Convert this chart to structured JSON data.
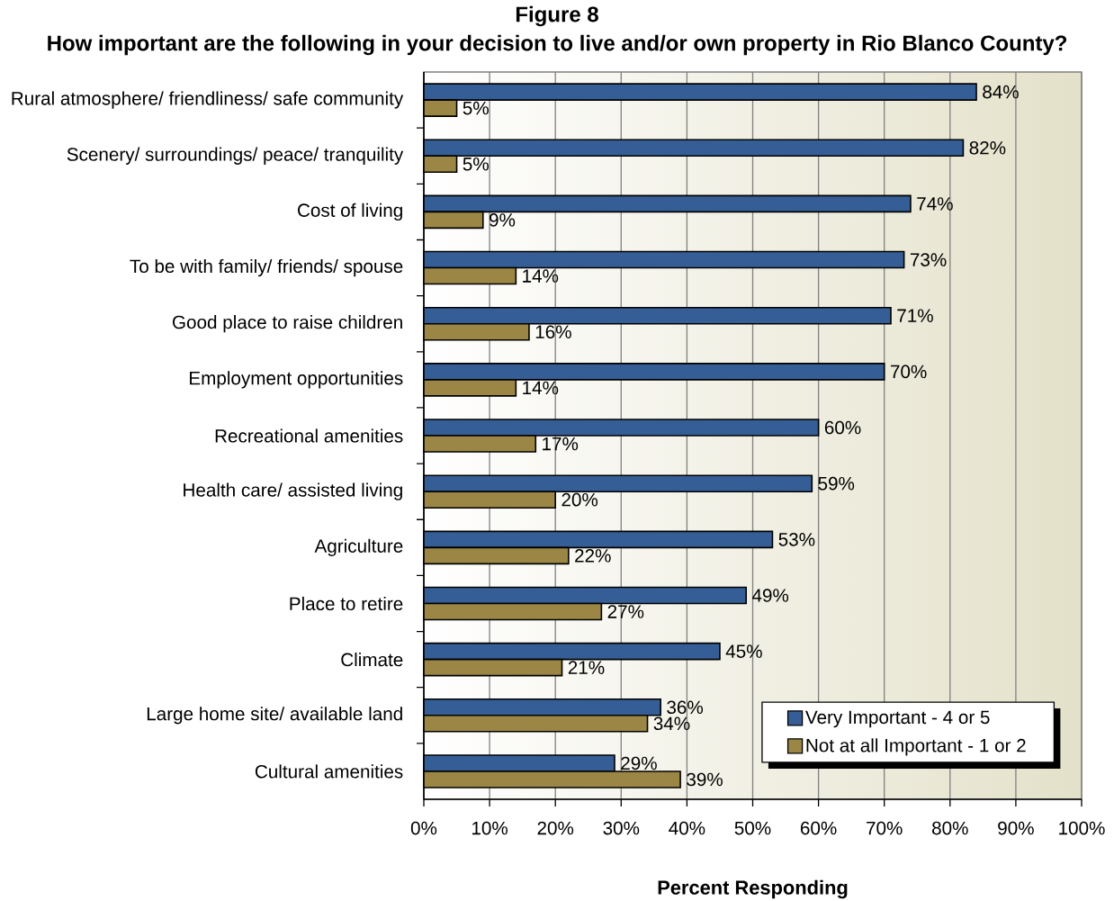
{
  "chart_data": {
    "type": "bar",
    "orientation": "horizontal",
    "title": "Figure 8",
    "subtitle": "How important are the following in your decision to live and/or own property in Rio Blanco County?",
    "xlabel": "Percent Responding",
    "categories": [
      "Rural atmosphere/ friendliness/ safe community",
      "Scenery/ surroundings/ peace/ tranquility",
      "Cost of living",
      "To be with family/ friends/ spouse",
      "Good place to raise children",
      "Employment opportunities",
      "Recreational amenities",
      "Health care/ assisted living",
      "Agriculture",
      "Place to retire",
      "Climate",
      "Large home site/ available land",
      "Cultural amenities"
    ],
    "series": [
      {
        "name": "Very Important - 4 or 5",
        "color": "#365e96",
        "values": [
          84,
          82,
          74,
          73,
          71,
          70,
          60,
          59,
          53,
          49,
          45,
          36,
          29
        ],
        "value_labels": [
          "84%",
          "82%",
          "74%",
          "73%",
          "71%",
          "70%",
          "60%",
          "59%",
          "53%",
          "49%",
          "45%",
          "36%",
          "29%"
        ]
      },
      {
        "name": "Not at all Important - 1 or 2",
        "color": "#9b8645",
        "values": [
          5,
          5,
          9,
          14,
          16,
          14,
          17,
          20,
          22,
          27,
          21,
          34,
          39
        ],
        "value_labels": [
          "5%",
          "5%",
          "9%",
          "14%",
          "16%",
          "14%",
          "17%",
          "20%",
          "22%",
          "27%",
          "21%",
          "34%",
          "39%"
        ]
      }
    ],
    "xlim": [
      0,
      100
    ],
    "xticks": [
      {
        "value": 0,
        "label": "0%"
      },
      {
        "value": 10,
        "label": "10%"
      },
      {
        "value": 20,
        "label": "20%"
      },
      {
        "value": 30,
        "label": "30%"
      },
      {
        "value": 40,
        "label": "40%"
      },
      {
        "value": 50,
        "label": "50%"
      },
      {
        "value": 60,
        "label": "60%"
      },
      {
        "value": 70,
        "label": "70%"
      },
      {
        "value": 80,
        "label": "80%"
      },
      {
        "value": 90,
        "label": "90%"
      },
      {
        "value": 100,
        "label": "100%"
      }
    ],
    "grid": "x",
    "legend": "bottom right"
  }
}
